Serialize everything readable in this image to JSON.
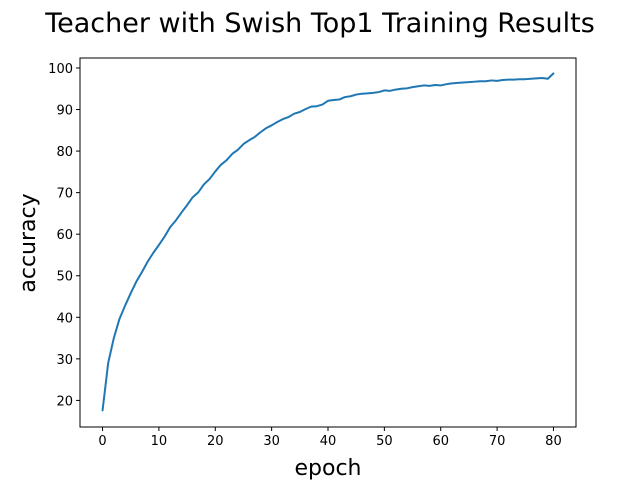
{
  "chart_data": {
    "type": "line",
    "title": "Teacher with Swish Top1 Training Results",
    "xlabel": "epoch",
    "ylabel": "accuracy",
    "xlim": [
      -4,
      84
    ],
    "ylim": [
      13.6,
      102.4
    ],
    "x_ticks": [
      0,
      10,
      20,
      30,
      40,
      50,
      60,
      70,
      80
    ],
    "y_ticks": [
      20,
      30,
      40,
      50,
      60,
      70,
      80,
      90,
      100
    ],
    "grid": false,
    "legend": "none",
    "series": [
      {
        "color": "#1f77b4",
        "x": [
          0,
          1,
          2,
          3,
          4,
          5,
          6,
          7,
          8,
          9,
          10,
          11,
          12,
          13,
          14,
          15,
          16,
          17,
          18,
          19,
          20,
          21,
          22,
          23,
          24,
          25,
          26,
          27,
          28,
          29,
          30,
          31,
          32,
          33,
          34,
          35,
          36,
          37,
          38,
          39,
          40,
          41,
          42,
          43,
          44,
          45,
          46,
          47,
          48,
          49,
          50,
          51,
          52,
          53,
          54,
          55,
          56,
          57,
          58,
          59,
          60,
          61,
          62,
          63,
          64,
          65,
          66,
          67,
          68,
          69,
          70,
          71,
          72,
          73,
          74,
          75,
          76,
          77,
          78,
          79,
          80
        ],
        "values": [
          17.6,
          29.0,
          35.0,
          39.6,
          42.8,
          45.8,
          48.6,
          50.9,
          53.4,
          55.5,
          57.4,
          59.4,
          61.7,
          63.3,
          65.2,
          67.0,
          68.9,
          70.1,
          72.0,
          73.3,
          75.1,
          76.7,
          77.8,
          79.3,
          80.3,
          81.7,
          82.6,
          83.4,
          84.5,
          85.5,
          86.2,
          87.0,
          87.7,
          88.2,
          89.0,
          89.4,
          90.1,
          90.7,
          90.8,
          91.2,
          92.1,
          92.3,
          92.4,
          93.0,
          93.2,
          93.6,
          93.8,
          93.9,
          94.0,
          94.2,
          94.6,
          94.5,
          94.8,
          95.0,
          95.1,
          95.4,
          95.6,
          95.8,
          95.7,
          95.9,
          95.8,
          96.1,
          96.3,
          96.4,
          96.5,
          96.6,
          96.7,
          96.8,
          96.8,
          97.0,
          96.9,
          97.1,
          97.2,
          97.2,
          97.3,
          97.3,
          97.4,
          97.5,
          97.6,
          97.4,
          98.7
        ]
      }
    ]
  }
}
